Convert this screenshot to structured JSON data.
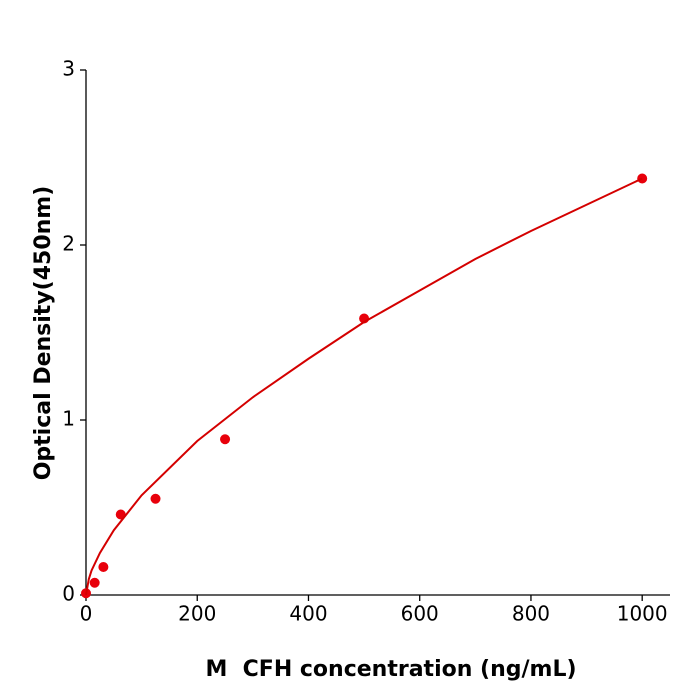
{
  "chart_data": {
    "type": "scatter",
    "xlabel": "M  CFH concentration (ng/mL)",
    "ylabel": "Optical Density(450nm)",
    "xlim": [
      0,
      1050
    ],
    "xticks": [
      0,
      200,
      400,
      600,
      800,
      1000
    ],
    "ylim": [
      0,
      3
    ],
    "yticks": [
      0,
      1,
      2,
      3
    ],
    "series": [
      {
        "style": "points",
        "color": "#e8000b",
        "x": [
          0,
          15.6,
          31.25,
          62.5,
          125,
          250,
          500,
          1000
        ],
        "values": [
          0.01,
          0.07,
          0.16,
          0.46,
          0.55,
          0.89,
          1.58,
          2.38
        ]
      },
      {
        "style": "line",
        "color": "#d40000",
        "x": [
          0,
          5,
          10,
          25,
          50,
          100,
          200,
          300,
          400,
          500,
          600,
          700,
          800,
          900,
          1000
        ],
        "values": [
          0,
          0.09,
          0.14,
          0.24,
          0.37,
          0.57,
          0.88,
          1.13,
          1.35,
          1.56,
          1.74,
          1.92,
          2.08,
          2.23,
          2.38
        ]
      }
    ]
  }
}
